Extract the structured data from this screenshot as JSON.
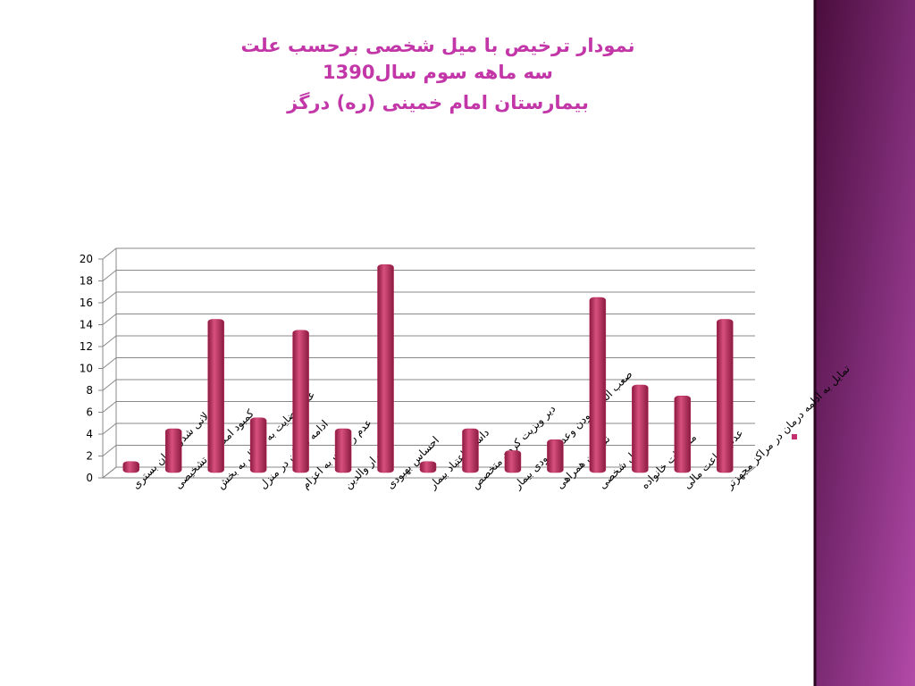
{
  "chart_data": {
    "type": "bar",
    "title": [
      "نمودار ترخیص با میل شخصی برحسب علت",
      "سه ماهه سوم سال1390",
      "بیمارستان امام خمینی (ره) درگز"
    ],
    "categories": [
      "طولانی شدن زمان بستری",
      "کمبود امکانات تشخیصی",
      "عدم رضایت به انتقال به بخش",
      "ادامه درمان در منزل",
      "عدم رضایت به اعزام",
      "اصرار والدین",
      "احساس بهبودی",
      "داشتن اعتیاد بیمار",
      "دیر ویزیت کردن متخصص",
      "صعب العلاج بودن وعدم بهبودی بیمار",
      "نداشتن همراهی",
      "دلایل شخصی",
      "مشکلات خانواده",
      "عدم بضاعت مالی",
      "تمایل به ادامه درمان در مراکز مجهزتر"
    ],
    "values": [
      1,
      4,
      14,
      5,
      13,
      4,
      19,
      1,
      4,
      2,
      3,
      16,
      8,
      7,
      14
    ],
    "color": "#b8285a",
    "ylim": [
      0,
      20
    ],
    "yticks": [
      0,
      2,
      4,
      6,
      8,
      10,
      12,
      14,
      16,
      18,
      20
    ],
    "grid": true
  }
}
